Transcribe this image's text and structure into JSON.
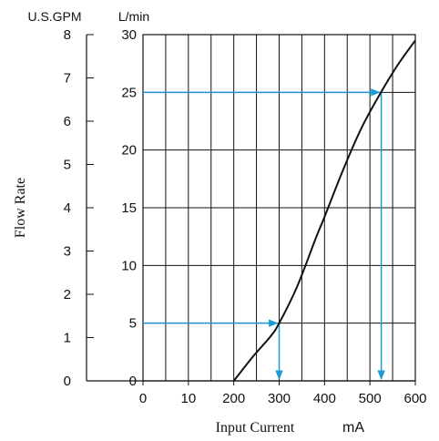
{
  "chart_data": {
    "type": "line",
    "xlabel": "Input Current",
    "xunit": "mA",
    "ylabel": "Flow Rate",
    "left_unit": "U.S.GPM",
    "right_unit": "L/min",
    "x_ticks": [
      "0",
      "10",
      "200",
      "300",
      "400",
      "500",
      "600"
    ],
    "gpm_ticks": [
      "0",
      "1",
      "2",
      "3",
      "4",
      "5",
      "6",
      "7",
      "8"
    ],
    "lpm_ticks": [
      "0",
      "5",
      "10",
      "15",
      "20",
      "25",
      "30"
    ],
    "xlim": [
      0,
      600
    ],
    "ylim_lpm": [
      0,
      30
    ],
    "ylim_gpm": [
      0,
      8
    ],
    "grid": true,
    "series": [
      {
        "x": [
          200,
          240,
          280,
          300,
          340,
          380,
          400,
          440,
          480,
          520,
          560,
          600
        ],
        "y": [
          0,
          2.0,
          3.8,
          5.0,
          8.2,
          12.3,
          14.2,
          18.2,
          21.8,
          24.7,
          27.3,
          29.5
        ]
      }
    ],
    "reference_lines": [
      {
        "x": 300,
        "y": 5
      },
      {
        "x": 525,
        "y": 25
      }
    ],
    "colors": {
      "curve": "#111111",
      "reference": "#1a9bd7",
      "grid": "#111111"
    }
  }
}
